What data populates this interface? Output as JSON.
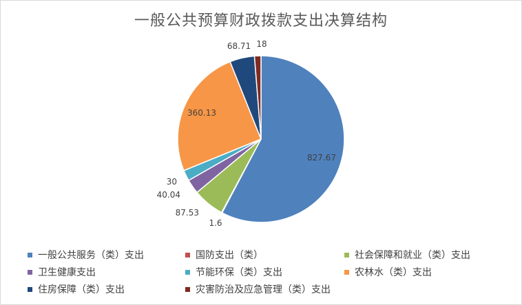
{
  "chart_data": {
    "type": "pie",
    "title": "一般公共预算财政拨款支出决算结构",
    "categories": [
      "一般公共服务（类）支出",
      "国防支出（类）",
      "社会保障和就业（类）支出",
      "卫生健康支出",
      "节能环保（类）支出",
      "农林水（类）支出",
      "住房保障（类）支出",
      "灾害防治及应急管理（类）支出"
    ],
    "values": [
      827.67,
      1.6,
      87.53,
      40.04,
      30,
      360.13,
      68.71,
      18
    ],
    "data_labels": [
      "827.67",
      "1.6",
      "87.53",
      "40.04",
      "30",
      "360.13",
      "68.71",
      "18"
    ],
    "colors": [
      "#4f81bd",
      "#c0504d",
      "#9bbb59",
      "#8064a2",
      "#4bacc6",
      "#f79646",
      "#1f497d",
      "#7f2a23"
    ],
    "legend_position": "bottom"
  }
}
